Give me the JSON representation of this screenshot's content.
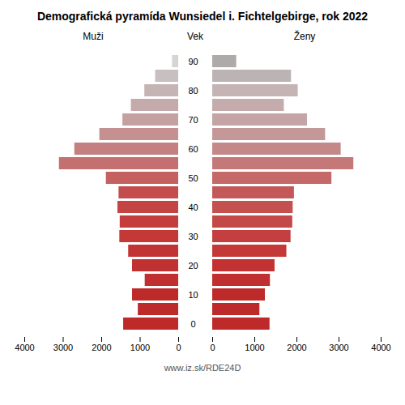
{
  "chart_data": {
    "type": "bar",
    "orientation": "horizontal",
    "title": "Demografická pyramída Wunsiedel i. Fichtelgebirge, rok 2022",
    "ylabel": "Vek",
    "categories": [
      "0",
      null,
      "10",
      null,
      "20",
      null,
      "30",
      null,
      "40",
      null,
      "50",
      null,
      "60",
      null,
      "70",
      null,
      "80",
      null,
      "90"
    ],
    "series": [
      {
        "name": "Muži",
        "values": [
          1430,
          1050,
          1200,
          870,
          1200,
          1300,
          1530,
          1520,
          1580,
          1550,
          1880,
          3100,
          2700,
          2050,
          1450,
          1230,
          880,
          600,
          160
        ],
        "colors": [
          "#be2929",
          "#be2929",
          "#be2929",
          "#c03030",
          "#c03232",
          "#c23434",
          "#c43838",
          "#c43c3c",
          "#c44444",
          "#c44c4c",
          "#c46060",
          "#c47070",
          "#c48080",
          "#c49090",
          "#c4a0a0",
          "#c4aaaa",
          "#c4b4b4",
          "#c8c0c0",
          "#d8d4d4"
        ]
      },
      {
        "name": "Ženy",
        "values": [
          1360,
          1120,
          1250,
          1370,
          1480,
          1760,
          1860,
          1900,
          1910,
          1940,
          2830,
          3350,
          3050,
          2680,
          2250,
          1700,
          2030,
          1870,
          570
        ],
        "colors": [
          "#be2929",
          "#be2929",
          "#be2929",
          "#c03030",
          "#c23232",
          "#c43838",
          "#c44040",
          "#c44848",
          "#c45050",
          "#c45858",
          "#c46868",
          "#c47878",
          "#c48888",
          "#c49898",
          "#c4a4a4",
          "#c4acac",
          "#c4b4b4",
          "#bcb4b4",
          "#aeaaaa"
        ]
      }
    ],
    "xlim": [
      0,
      4000
    ],
    "xticks": [
      0,
      1000,
      2000,
      3000,
      4000
    ],
    "grid": false,
    "annotations": [
      "www.iz.sk/RDE24D"
    ]
  }
}
